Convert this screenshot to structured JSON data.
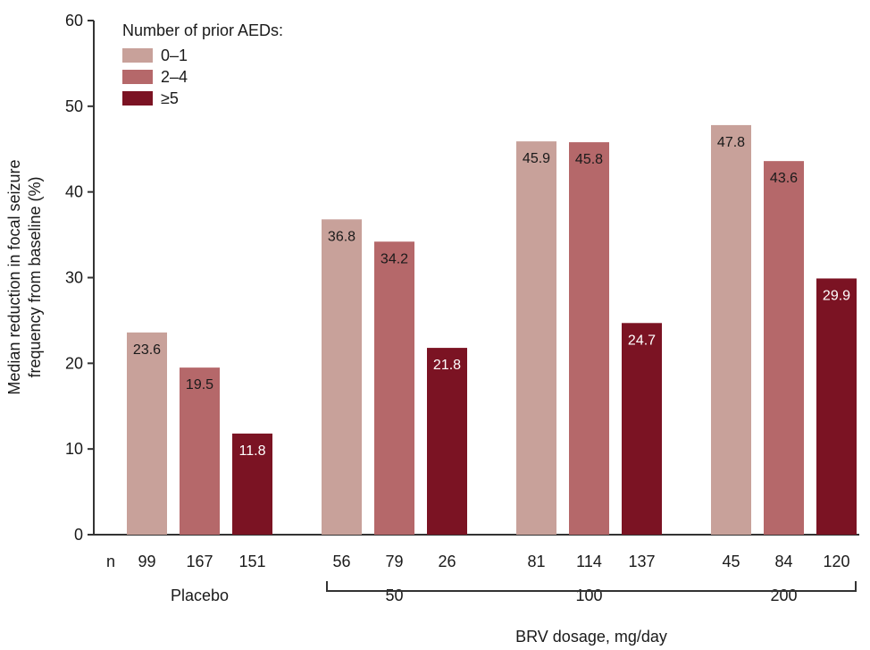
{
  "chart_data": {
    "type": "bar",
    "ylabel_lines": [
      "Median reduction in focal seizure",
      "frequency from baseline (%)"
    ],
    "xlabel": "BRV dosage, mg/day",
    "ylim": [
      0,
      60
    ],
    "yticks": [
      0,
      10,
      20,
      30,
      40,
      50,
      60
    ],
    "legend": {
      "title": "Number of prior AEDs:",
      "position": "top-left",
      "entries": [
        "0–1",
        "2–4",
        "≥5"
      ]
    },
    "series": [
      {
        "name": "0–1",
        "color": "#c8a19a",
        "label_color": "#1a1a1a",
        "values": [
          23.6,
          36.8,
          45.9,
          47.8
        ]
      },
      {
        "name": "2–4",
        "color": "#b5686a",
        "label_color": "#1a1a1a",
        "values": [
          19.5,
          34.2,
          45.8,
          43.6
        ]
      },
      {
        "name": "≥5",
        "color": "#7b1323",
        "label_color": "#ffffff",
        "values": [
          11.8,
          21.8,
          24.7,
          29.9
        ]
      }
    ],
    "groups": [
      "Placebo",
      "50",
      "100",
      "200"
    ],
    "n_row_label": "n",
    "n_values": [
      [
        99,
        167,
        151
      ],
      [
        56,
        79,
        26
      ],
      [
        81,
        114,
        137
      ],
      [
        45,
        84,
        120
      ]
    ]
  }
}
